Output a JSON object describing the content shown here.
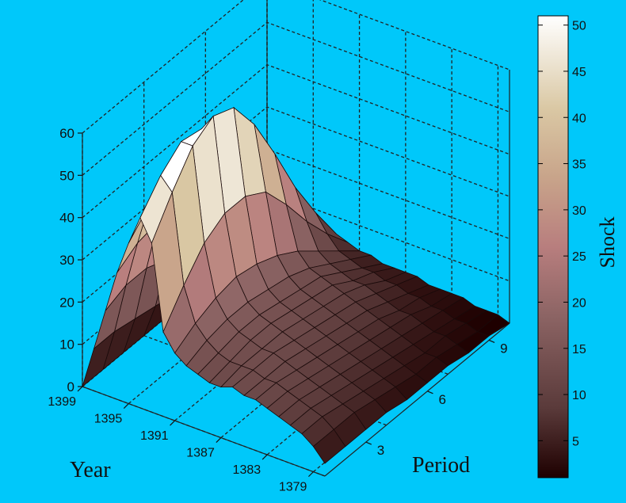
{
  "chart_data": {
    "type": "surface",
    "xlabel": "Year",
    "ylabel": "Period",
    "colorbar_label": "Shock",
    "colormap": "pink",
    "background_color": "#00c8fa",
    "grid": true,
    "zlim": [
      0,
      60
    ],
    "z_ticks": [
      "0",
      "10",
      "20",
      "30",
      "40",
      "50",
      "60"
    ],
    "year_ticks": [
      "1399",
      "1395",
      "1391",
      "1387",
      "1383",
      "1379"
    ],
    "period_ticks": [
      "3",
      "6",
      "9"
    ],
    "colorbar_ticks": [
      "5",
      "10",
      "15",
      "20",
      "25",
      "30",
      "35",
      "40",
      "45",
      "50"
    ],
    "colorbar_range": [
      1,
      51
    ],
    "years": [
      1399,
      1398,
      1397,
      1396,
      1395,
      1394,
      1393,
      1392,
      1391,
      1390,
      1389,
      1388,
      1387,
      1386,
      1385,
      1384,
      1383,
      1382,
      1381,
      1380,
      1379,
      1378
    ],
    "periods": [
      1,
      2,
      3,
      4,
      5,
      6,
      7,
      8,
      9,
      10
    ],
    "z": [
      [
        0,
        0,
        0,
        0,
        0,
        0,
        0,
        0,
        0,
        0
      ],
      [
        10,
        10,
        9,
        8,
        7,
        6,
        5,
        4,
        3,
        2
      ],
      [
        20,
        22,
        22,
        20,
        18,
        15,
        12,
        9,
        6,
        3
      ],
      [
        30,
        33,
        34,
        32,
        28,
        24,
        19,
        14,
        9,
        4
      ],
      [
        38,
        43,
        45,
        43,
        38,
        32,
        25,
        18,
        11,
        5
      ],
      [
        45,
        51,
        55,
        54,
        48,
        40,
        31,
        22,
        13,
        6
      ],
      [
        40,
        48,
        55,
        58,
        56,
        48,
        37,
        25,
        15,
        6
      ],
      [
        20,
        27,
        33,
        36,
        36,
        33,
        26,
        18,
        11,
        5
      ],
      [
        16,
        19,
        21,
        22,
        21,
        19,
        16,
        12,
        8,
        4
      ],
      [
        14,
        16,
        17,
        17,
        16,
        15,
        13,
        10,
        7,
        4
      ],
      [
        13,
        14,
        15,
        15,
        14,
        13,
        12,
        9,
        6,
        3
      ],
      [
        12,
        13,
        14,
        14,
        13,
        12,
        11,
        8,
        6,
        3
      ],
      [
        12,
        13,
        13,
        13,
        12,
        11,
        10,
        8,
        5,
        3
      ],
      [
        13,
        13,
        13,
        12,
        11,
        10,
        9,
        7,
        5,
        3
      ],
      [
        12,
        12,
        12,
        11,
        10,
        9,
        8,
        6,
        4,
        2
      ],
      [
        12,
        12,
        11,
        10,
        9,
        8,
        7,
        5,
        4,
        2
      ],
      [
        11,
        11,
        10,
        9,
        8,
        7,
        6,
        5,
        3,
        2
      ],
      [
        10,
        10,
        9,
        8,
        7,
        6,
        5,
        4,
        3,
        2
      ],
      [
        9,
        9,
        8,
        7,
        6,
        5,
        4,
        3,
        2,
        1
      ],
      [
        8,
        8,
        7,
        6,
        5,
        4,
        3,
        3,
        2,
        1
      ],
      [
        6,
        6,
        6,
        5,
        4,
        3,
        3,
        2,
        1,
        1
      ],
      [
        3,
        3,
        3,
        3,
        2,
        2,
        2,
        1,
        1,
        0
      ]
    ]
  }
}
